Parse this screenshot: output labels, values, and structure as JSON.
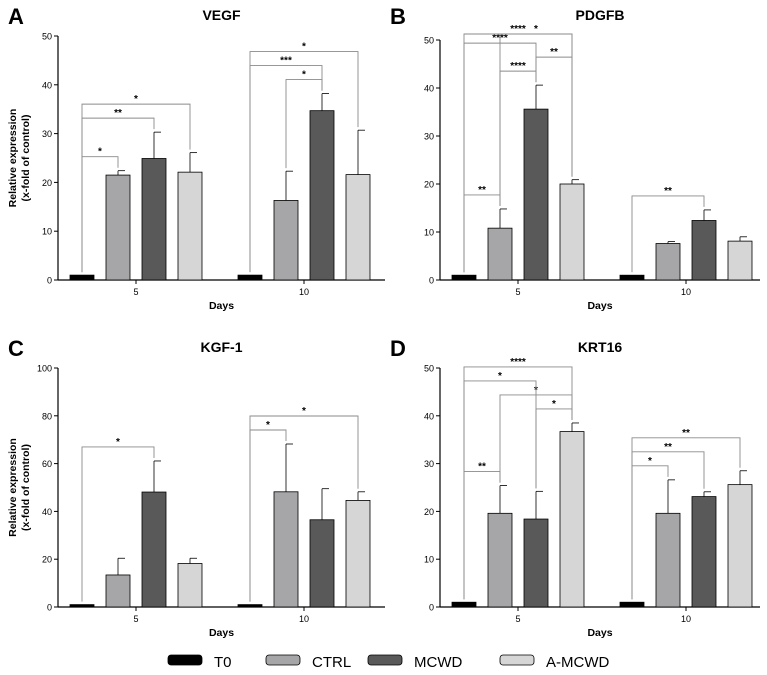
{
  "legend": [
    {
      "label": "T0",
      "color": "#000000"
    },
    {
      "label": "CTRL",
      "color": "#a6a6a8"
    },
    {
      "label": "MCWD",
      "color": "#595959"
    },
    {
      "label": "A-MCWD",
      "color": "#d6d6d6"
    }
  ],
  "chart_data": [
    {
      "type": "bar",
      "panel": "A",
      "title": "VEGF",
      "xlabel": "Days",
      "ylabel": [
        "Relative expression",
        "(x-fold of control)"
      ],
      "categories": [
        "5",
        "10"
      ],
      "ylim": [
        0,
        50
      ],
      "yticks": [
        0,
        10,
        20,
        30,
        40,
        50
      ],
      "series": [
        {
          "name": "T0",
          "values": [
            1,
            1
          ],
          "errors": [
            0,
            0
          ]
        },
        {
          "name": "CTRL",
          "values": [
            21.5,
            16.3
          ],
          "errors": [
            0.9,
            6.0
          ]
        },
        {
          "name": "MCWD",
          "values": [
            24.9,
            34.7
          ],
          "errors": [
            5.4,
            3.5
          ]
        },
        {
          "name": "A-MCWD",
          "values": [
            22.1,
            21.6
          ],
          "errors": [
            4.0,
            9.1
          ]
        }
      ],
      "significance": [
        {
          "group": 0,
          "from": 0,
          "to": 1,
          "label": "*"
        },
        {
          "group": 0,
          "from": 0,
          "to": 2,
          "label": "**"
        },
        {
          "group": 0,
          "from": 0,
          "to": 3,
          "label": "*"
        },
        {
          "group": 1,
          "from": 1,
          "to": 2,
          "label": "*"
        },
        {
          "group": 1,
          "from": 0,
          "to": 2,
          "label": "***"
        },
        {
          "group": 1,
          "from": 0,
          "to": 3,
          "label": "*"
        }
      ]
    },
    {
      "type": "bar",
      "panel": "B",
      "title": "PDGFB",
      "xlabel": "Days",
      "ylabel": [
        "",
        ""
      ],
      "categories": [
        "5",
        "10"
      ],
      "ylim": [
        0,
        50
      ],
      "yticks": [
        0,
        10,
        20,
        30,
        40,
        50
      ],
      "series": [
        {
          "name": "T0",
          "values": [
            1,
            1
          ],
          "errors": [
            0,
            0
          ]
        },
        {
          "name": "CTRL",
          "values": [
            10.8,
            7.6
          ],
          "errors": [
            4.0,
            0.4
          ]
        },
        {
          "name": "MCWD",
          "values": [
            35.6,
            12.4
          ],
          "errors": [
            5.0,
            2.2
          ]
        },
        {
          "name": "A-MCWD",
          "values": [
            20.0,
            8.1
          ],
          "errors": [
            0.9,
            0.9
          ]
        }
      ],
      "significance": [
        {
          "group": 0,
          "from": 0,
          "to": 1,
          "label": "**"
        },
        {
          "group": 0,
          "from": 1,
          "to": 2,
          "label": "****"
        },
        {
          "group": 0,
          "from": 2,
          "to": 3,
          "label": "**"
        },
        {
          "group": 0,
          "from": 0,
          "to": 2,
          "label": "****"
        },
        {
          "group": 0,
          "from": 1,
          "to": 3,
          "label": "*"
        },
        {
          "group": 0,
          "from": 0,
          "to": 3,
          "label": "****"
        },
        {
          "group": 1,
          "from": 0,
          "to": 2,
          "label": "**"
        }
      ]
    },
    {
      "type": "bar",
      "panel": "C",
      "title": "KGF-1",
      "xlabel": "Days",
      "ylabel": [
        "Relative expression",
        "(x-fold of control)"
      ],
      "categories": [
        "5",
        "10"
      ],
      "ylim": [
        0,
        100
      ],
      "yticks": [
        0,
        20,
        40,
        60,
        80,
        100
      ],
      "series": [
        {
          "name": "T0",
          "values": [
            1,
            1
          ],
          "errors": [
            0,
            0
          ]
        },
        {
          "name": "CTRL",
          "values": [
            13.4,
            48.2
          ],
          "errors": [
            7.0,
            20.0
          ]
        },
        {
          "name": "MCWD",
          "values": [
            48.1,
            36.5
          ],
          "errors": [
            13.0,
            13.0
          ]
        },
        {
          "name": "A-MCWD",
          "values": [
            18.2,
            44.6
          ],
          "errors": [
            2.2,
            3.6
          ]
        }
      ],
      "significance": [
        {
          "group": 0,
          "from": 0,
          "to": 2,
          "label": "*"
        },
        {
          "group": 1,
          "from": 0,
          "to": 1,
          "label": "*"
        },
        {
          "group": 1,
          "from": 0,
          "to": 3,
          "label": "*"
        }
      ]
    },
    {
      "type": "bar",
      "panel": "D",
      "title": "KRT16",
      "xlabel": "Days",
      "ylabel": [
        "",
        ""
      ],
      "categories": [
        "5",
        "10"
      ],
      "ylim": [
        0,
        50
      ],
      "yticks": [
        0,
        10,
        20,
        30,
        40,
        50
      ],
      "series": [
        {
          "name": "T0",
          "values": [
            1,
            1
          ],
          "errors": [
            0,
            0
          ]
        },
        {
          "name": "CTRL",
          "values": [
            19.6,
            19.6
          ],
          "errors": [
            5.8,
            7.0
          ]
        },
        {
          "name": "MCWD",
          "values": [
            18.4,
            23.1
          ],
          "errors": [
            5.8,
            1.0
          ]
        },
        {
          "name": "A-MCWD",
          "values": [
            36.7,
            25.6
          ],
          "errors": [
            1.8,
            2.9
          ]
        }
      ],
      "significance": [
        {
          "group": 0,
          "from": 0,
          "to": 1,
          "label": "**"
        },
        {
          "group": 0,
          "from": 2,
          "to": 3,
          "label": "*"
        },
        {
          "group": 0,
          "from": 1,
          "to": 3,
          "label": "*"
        },
        {
          "group": 0,
          "from": 0,
          "to": 2,
          "label": "*"
        },
        {
          "group": 0,
          "from": 0,
          "to": 3,
          "label": "****"
        },
        {
          "group": 1,
          "from": 0,
          "to": 1,
          "label": "*"
        },
        {
          "group": 1,
          "from": 0,
          "to": 2,
          "label": "**"
        },
        {
          "group": 1,
          "from": 0,
          "to": 3,
          "label": "**"
        }
      ]
    }
  ]
}
